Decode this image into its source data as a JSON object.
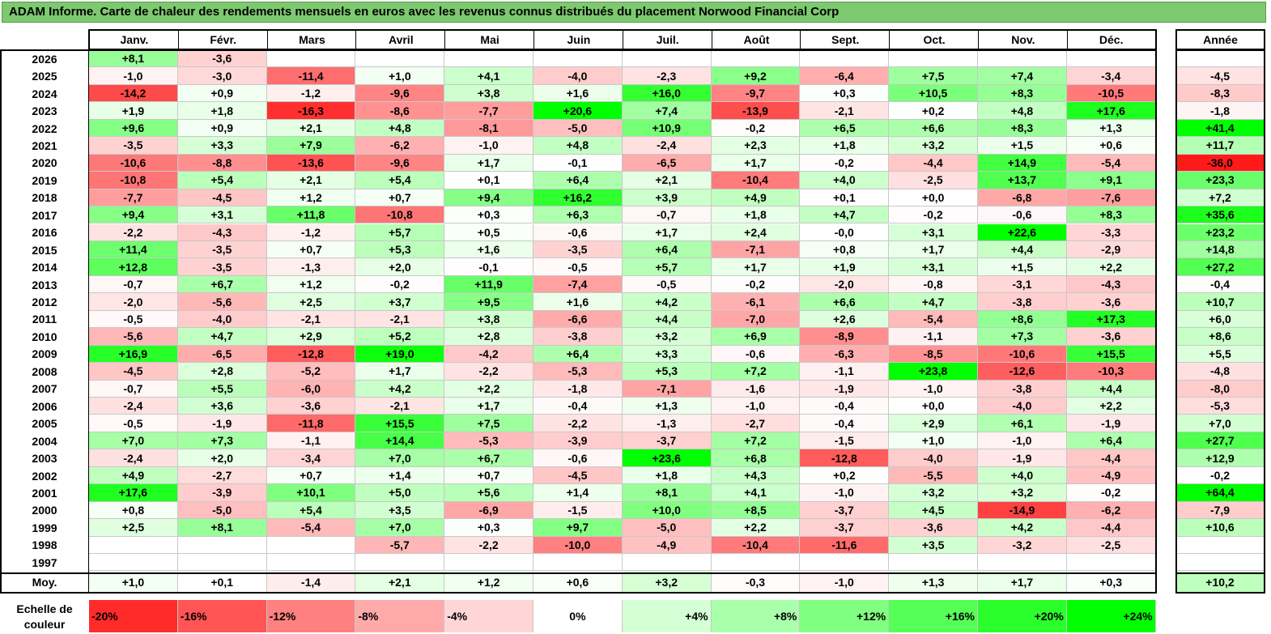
{
  "title": "ADAM Informe. Carte de chaleur des rendements mensuels en euros avec les revenus connus distribués du placement Norwood Financial Corp",
  "chart_data": {
    "type": "heatmap",
    "title": "ADAM Informe. Carte de chaleur des rendements mensuels en euros avec les revenus connus distribués du placement Norwood Financial Corp",
    "months": [
      "Janv.",
      "Févr.",
      "Mars",
      "Avril",
      "Mai",
      "Juin",
      "Juil.",
      "Août",
      "Sept.",
      "Oct.",
      "Nov.",
      "Déc."
    ],
    "annual_header": "Année",
    "rows": [
      {
        "year": "2026",
        "months": [
          "+8,1",
          "-3,6",
          "",
          "",
          "",
          "",
          "",
          "",
          "",
          "",
          "",
          ""
        ],
        "annual": ""
      },
      {
        "year": "2025",
        "months": [
          "-1,0",
          "-3,0",
          "-11,4",
          "+1,0",
          "+4,1",
          "-4,0",
          "-2,3",
          "+9,2",
          "-6,4",
          "+7,5",
          "+7,4",
          "-3,4"
        ],
        "annual": "-4,5"
      },
      {
        "year": "2024",
        "months": [
          "-14,2",
          "+0,9",
          "-1,2",
          "-9,6",
          "+3,8",
          "+1,6",
          "+16,0",
          "-9,7",
          "+0,3",
          "+10,5",
          "+8,3",
          "-10,5"
        ],
        "annual": "-8,3"
      },
      {
        "year": "2023",
        "months": [
          "+1,9",
          "+1,8",
          "-16,3",
          "-8,6",
          "-7,7",
          "+20,6",
          "+7,4",
          "-13,9",
          "-2,1",
          "+0,2",
          "+4,8",
          "+17,6"
        ],
        "annual": "-1,8"
      },
      {
        "year": "2022",
        "months": [
          "+9,6",
          "+0,9",
          "+2,1",
          "+4,8",
          "-8,1",
          "-5,0",
          "+10,9",
          "-0,2",
          "+6,5",
          "+6,6",
          "+8,3",
          "+1,3"
        ],
        "annual": "+41,4"
      },
      {
        "year": "2021",
        "months": [
          "-3,5",
          "+3,3",
          "+7,9",
          "-6,2",
          "-1,0",
          "+4,8",
          "-2,4",
          "+2,3",
          "+1,8",
          "+3,2",
          "+1,5",
          "+0,6"
        ],
        "annual": "+11,7"
      },
      {
        "year": "2020",
        "months": [
          "-10,6",
          "-8,8",
          "-13,6",
          "-9,6",
          "+1,7",
          "-0,1",
          "-6,5",
          "+1,7",
          "-0,2",
          "-4,4",
          "+14,9",
          "-5,4"
        ],
        "annual": "-36,0"
      },
      {
        "year": "2019",
        "months": [
          "-10,8",
          "+5,4",
          "+2,1",
          "+5,4",
          "+0,1",
          "+6,4",
          "+2,1",
          "-10,4",
          "+4,0",
          "-2,5",
          "+13,7",
          "+9,1"
        ],
        "annual": "+23,3"
      },
      {
        "year": "2018",
        "months": [
          "-7,7",
          "-4,5",
          "+1,2",
          "+0,7",
          "+9,4",
          "+16,2",
          "+3,9",
          "+4,9",
          "+0,1",
          "+0,0",
          "-6,8",
          "-7,6"
        ],
        "annual": "+7,2"
      },
      {
        "year": "2017",
        "months": [
          "+9,4",
          "+3,1",
          "+11,8",
          "-10,8",
          "+0,3",
          "+6,3",
          "-0,7",
          "+1,8",
          "+4,7",
          "-0,2",
          "-0,6",
          "+8,3"
        ],
        "annual": "+35,6"
      },
      {
        "year": "2016",
        "months": [
          "-2,2",
          "-4,3",
          "-1,2",
          "+5,7",
          "+0,5",
          "-0,6",
          "+1,7",
          "+2,4",
          "-0,0",
          "+3,1",
          "+22,6",
          "-3,3"
        ],
        "annual": "+23,2"
      },
      {
        "year": "2015",
        "months": [
          "+11,4",
          "-3,5",
          "+0,7",
          "+5,3",
          "+1,6",
          "-3,5",
          "+6,4",
          "-7,1",
          "+0,8",
          "+1,7",
          "+4,4",
          "-2,9"
        ],
        "annual": "+14,8"
      },
      {
        "year": "2014",
        "months": [
          "+12,8",
          "-3,5",
          "-1,3",
          "+2,0",
          "-0,1",
          "-0,5",
          "+5,7",
          "+1,7",
          "+1,9",
          "+3,1",
          "+1,5",
          "+2,2"
        ],
        "annual": "+27,2"
      },
      {
        "year": "2013",
        "months": [
          "-0,7",
          "+6,7",
          "+1,2",
          "-0,2",
          "+11,9",
          "-7,4",
          "-0,5",
          "-0,2",
          "-2,0",
          "-0,8",
          "-3,1",
          "-4,3"
        ],
        "annual": "-0,4"
      },
      {
        "year": "2012",
        "months": [
          "-2,0",
          "-5,6",
          "+2,5",
          "+3,7",
          "+9,5",
          "+1,6",
          "+4,2",
          "-6,1",
          "+6,6",
          "+4,7",
          "-3,8",
          "-3,6"
        ],
        "annual": "+10,7"
      },
      {
        "year": "2011",
        "months": [
          "-0,5",
          "-4,0",
          "-2,1",
          "-2,1",
          "+3,8",
          "-6,6",
          "+4,4",
          "-7,0",
          "+2,6",
          "-5,4",
          "+8,6",
          "+17,3"
        ],
        "annual": "+6,0"
      },
      {
        "year": "2010",
        "months": [
          "-5,6",
          "+4,7",
          "+2,9",
          "+5,2",
          "+2,8",
          "-3,8",
          "+3,2",
          "+6,9",
          "-8,9",
          "-1,1",
          "+7,3",
          "-3,6"
        ],
        "annual": "+8,6"
      },
      {
        "year": "2009",
        "months": [
          "+16,9",
          "-6,5",
          "-12,8",
          "+19,0",
          "-4,2",
          "+6,4",
          "+3,3",
          "-0,6",
          "-6,3",
          "-8,5",
          "-10,6",
          "+15,5"
        ],
        "annual": "+5,5"
      },
      {
        "year": "2008",
        "months": [
          "-4,5",
          "+2,8",
          "-5,2",
          "+1,7",
          "-2,2",
          "-5,3",
          "+5,3",
          "+7,2",
          "-1,1",
          "+23,8",
          "-12,6",
          "-10,3"
        ],
        "annual": "-4,8"
      },
      {
        "year": "2007",
        "months": [
          "-0,7",
          "+5,5",
          "-6,0",
          "+4,2",
          "+2,2",
          "-1,8",
          "-7,1",
          "-1,6",
          "-1,9",
          "-1,0",
          "-3,8",
          "+4,4"
        ],
        "annual": "-8,0"
      },
      {
        "year": "2006",
        "months": [
          "-2,4",
          "+3,6",
          "-3,6",
          "-2,1",
          "+1,7",
          "-0,4",
          "+1,3",
          "-1,0",
          "-0,4",
          "+0,0",
          "-4,0",
          "+2,2"
        ],
        "annual": "-5,3"
      },
      {
        "year": "2005",
        "months": [
          "-0,5",
          "-1,9",
          "-11,8",
          "+15,5",
          "+7,5",
          "-2,2",
          "-1,3",
          "-2,7",
          "-0,4",
          "+2,9",
          "+6,1",
          "-1,9"
        ],
        "annual": "+7,0"
      },
      {
        "year": "2004",
        "months": [
          "+7,0",
          "+7,3",
          "-1,1",
          "+14,4",
          "-5,3",
          "-3,9",
          "-3,7",
          "+7,2",
          "-1,5",
          "+1,0",
          "-1,0",
          "+6,4"
        ],
        "annual": "+27,7"
      },
      {
        "year": "2003",
        "months": [
          "-2,4",
          "+2,0",
          "-3,4",
          "+7,0",
          "+6,7",
          "-0,6",
          "+23,6",
          "+6,8",
          "-12,8",
          "-4,0",
          "-1,9",
          "-4,4"
        ],
        "annual": "+12,9"
      },
      {
        "year": "2002",
        "months": [
          "+4,9",
          "-2,7",
          "+0,7",
          "+1,4",
          "+0,7",
          "-4,5",
          "+1,8",
          "+4,3",
          "+0,2",
          "-5,5",
          "+4,0",
          "-4,9"
        ],
        "annual": "-0,2"
      },
      {
        "year": "2001",
        "months": [
          "+17,6",
          "-3,9",
          "+10,1",
          "+5,0",
          "+5,6",
          "+1,4",
          "+8,1",
          "+4,1",
          "-1,0",
          "+3,2",
          "+3,2",
          "-0,2"
        ],
        "annual": "+64,4"
      },
      {
        "year": "2000",
        "months": [
          "+0,8",
          "-5,0",
          "+5,4",
          "+3,5",
          "-6,9",
          "-1,5",
          "+10,0",
          "+8,5",
          "-3,7",
          "+4,5",
          "-14,9",
          "-6,2"
        ],
        "annual": "-7,9"
      },
      {
        "year": "1999",
        "months": [
          "+2,5",
          "+8,1",
          "-5,4",
          "+7,0",
          "+0,3",
          "+9,7",
          "-5,0",
          "+2,2",
          "-3,7",
          "-3,6",
          "+4,2",
          "-4,4"
        ],
        "annual": "+10,6"
      },
      {
        "year": "1998",
        "months": [
          "",
          "",
          "",
          "-5,7",
          "-2,2",
          "-10,0",
          "-4,9",
          "-10,4",
          "-11,6",
          "+3,5",
          "-3,2",
          "-2,5"
        ],
        "annual": ""
      },
      {
        "year": "1997",
        "months": [
          "",
          "",
          "",
          "",
          "",
          "",
          "",
          "",
          "",
          "",
          "",
          ""
        ],
        "annual": ""
      }
    ],
    "average": {
      "label": "Moy.",
      "months": [
        "+1,0",
        "+0,1",
        "-1,4",
        "+2,1",
        "+1,2",
        "+0,6",
        "+3,2",
        "-0,3",
        "-1,0",
        "+1,3",
        "+1,7",
        "+0,3"
      ],
      "annual": "+10,2"
    },
    "scale": {
      "label": "Echelle de couleur",
      "items": [
        {
          "text": "-20%",
          "value": -20
        },
        {
          "text": "-16%",
          "value": -16
        },
        {
          "text": "-12%",
          "value": -12
        },
        {
          "text": "-8%",
          "value": -8
        },
        {
          "text": "-4%",
          "value": -4
        },
        {
          "text": "0%",
          "value": 0
        },
        {
          "text": "+4%",
          "value": 4
        },
        {
          "text": "+8%",
          "value": 8
        },
        {
          "text": "+12%",
          "value": 12
        },
        {
          "text": "+16%",
          "value": 16
        },
        {
          "text": "+20%",
          "value": 20
        },
        {
          "text": "+24%",
          "value": 24
        }
      ]
    },
    "colors": {
      "negative_max": "#ff0000",
      "neutral": "#ffffff",
      "positive_max": "#00ff00"
    }
  }
}
